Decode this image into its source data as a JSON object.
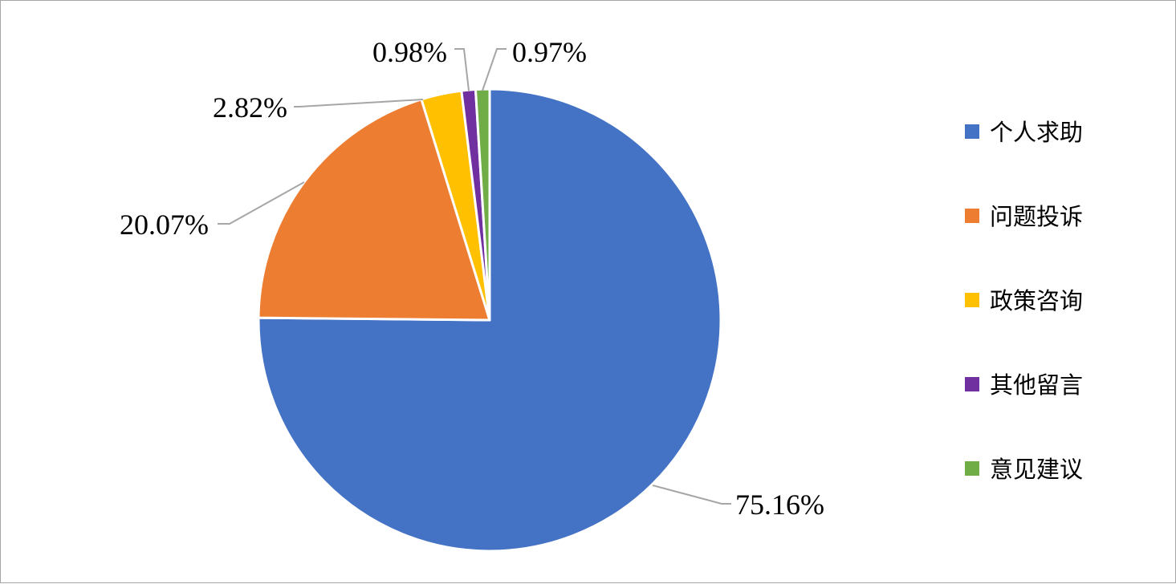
{
  "chart_data": {
    "type": "pie",
    "title": "",
    "categories": [
      "个人求助",
      "问题投诉",
      "政策咨询",
      "其他留言",
      "意见建议"
    ],
    "values": [
      75.16,
      20.07,
      2.82,
      0.98,
      0.97
    ],
    "data_labels": [
      "75.16%",
      "20.07%",
      "2.82%",
      "0.98%",
      "0.97%"
    ],
    "colors": [
      "#4472C4",
      "#ED7D31",
      "#FFC000",
      "#7030A0",
      "#70AD47"
    ],
    "start_angle": "12 o'clock",
    "direction": "clockwise",
    "legend_position": "right"
  }
}
